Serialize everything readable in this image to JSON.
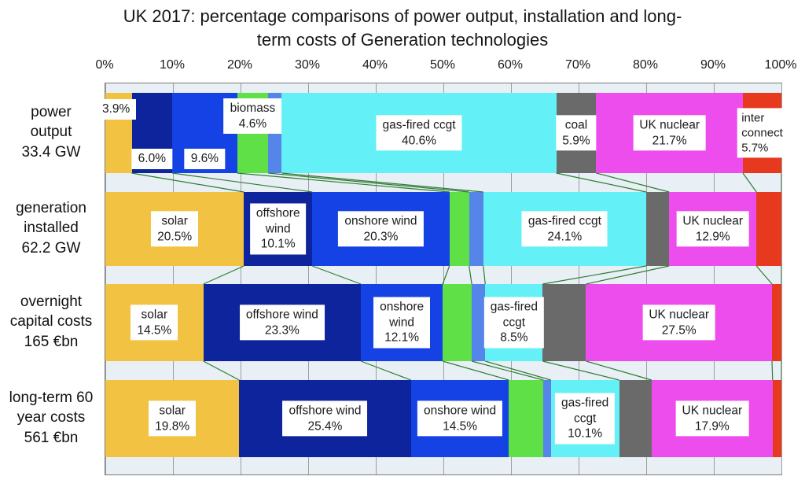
{
  "header": {
    "title": "UK 2017: percentage comparisons of power output, installation and long-\nterm costs of Generation technologies"
  },
  "colors": {
    "plot_background": "#E8EFF5",
    "plot_border": "#7A7A7A",
    "gridline": "#9E9E9E",
    "connector_line": "#2E7D32",
    "label_box_background": "#FFFFFF",
    "text": "#161616"
  },
  "chart_data": {
    "type": "bar",
    "variant": "horizontal 100% stacked comparison with between-row connector lines",
    "title": "UK 2017: percentage comparisons of power output, installation and long-term costs of Generation technologies",
    "x_axis": {
      "position": "top",
      "range": [
        0,
        100
      ],
      "tick_labels": [
        "0%",
        "10%",
        "20%",
        "30%",
        "40%",
        "50%",
        "60%",
        "70%",
        "80%",
        "90%",
        "100%"
      ],
      "gridlines": true
    },
    "series": [
      {
        "name": "solar",
        "color": "#F2C342"
      },
      {
        "name": "offshore wind",
        "color": "#0D249C"
      },
      {
        "name": "onshore wind",
        "color": "#1542E4"
      },
      {
        "name": "biomass",
        "color": "#5FE046"
      },
      {
        "name": "unlabeled-light-blue",
        "color": "#5585E8"
      },
      {
        "name": "gas-fired ccgt",
        "color": "#63F0F6"
      },
      {
        "name": "coal",
        "color": "#6A6A6A"
      },
      {
        "name": "UK nuclear",
        "color": "#ED4DED"
      },
      {
        "name": "interconnect",
        "color": "#E6391E"
      }
    ],
    "rows": [
      {
        "label": "power\noutput\n33.4 GW",
        "values": [
          3.9,
          6.0,
          9.6,
          4.6,
          2.0,
          40.6,
          5.9,
          21.7,
          5.7
        ],
        "segment_labels": [
          "3.9%",
          "6.0%",
          "9.6%",
          "biomass\n4.6%",
          "",
          "gas-fired ccgt\n40.6%",
          "coal\n5.9%",
          "UK nuclear\n21.7%",
          "inter\nconnect\n5.7%"
        ],
        "label_positions": [
          "top-left",
          "bottom",
          "bottom",
          "top",
          "none",
          "center",
          "center",
          "center",
          "center-left"
        ]
      },
      {
        "label": "generation\ninstalled\n62.2  GW",
        "values": [
          20.5,
          10.1,
          20.3,
          2.9,
          2.1,
          24.1,
          3.4,
          12.9,
          3.7
        ],
        "segment_labels": [
          "solar\n20.5%",
          "offshore\nwind\n10.1%",
          "onshore wind\n20.3%",
          "",
          "",
          "gas-fired ccgt\n24.1%",
          "",
          "UK nuclear\n12.9%",
          ""
        ],
        "label_positions": [
          "center",
          "center",
          "center",
          "none",
          "none",
          "center",
          "none",
          "center",
          "none"
        ]
      },
      {
        "label": "overnight\ncapital costs\n165 €bn",
        "values": [
          14.5,
          23.3,
          12.1,
          4.3,
          2.0,
          8.5,
          6.4,
          27.5,
          1.4
        ],
        "segment_labels": [
          "solar\n14.5%",
          "offshore wind\n23.3%",
          "onshore\nwind\n12.1%",
          "",
          "",
          "gas-fired\nccgt\n8.5%",
          "",
          "UK nuclear\n27.5%",
          ""
        ],
        "label_positions": [
          "center",
          "center",
          "center",
          "none",
          "none",
          "center",
          "none",
          "center",
          "none"
        ]
      },
      {
        "label": "long-term 60\nyear costs\n561 €bn",
        "values": [
          19.8,
          25.4,
          14.5,
          5.1,
          1.1,
          10.1,
          4.8,
          17.9,
          1.3
        ],
        "segment_labels": [
          "solar\n19.8%",
          "offshore wind\n25.4%",
          "onshore wind\n14.5%",
          "",
          "",
          "gas-fired\nccgt\n10.1%",
          "",
          "UK nuclear\n17.9%",
          ""
        ],
        "label_positions": [
          "center",
          "center",
          "center",
          "none",
          "none",
          "center",
          "none",
          "center",
          "none"
        ]
      }
    ],
    "connectors": {
      "color": "#2E7D32",
      "description": "green lines in the gaps between rows linking corresponding segment boundaries"
    }
  }
}
